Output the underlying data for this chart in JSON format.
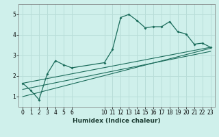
{
  "bg_color": "#cff0eb",
  "line_color": "#1a6b5a",
  "grid_color": "#b8ddd8",
  "xlabel": "Humidex (Indice chaleur)",
  "xlim": [
    -0.5,
    23.5
  ],
  "ylim": [
    0.5,
    5.5
  ],
  "yticks": [
    1,
    2,
    3,
    4,
    5
  ],
  "xticks": [
    0,
    1,
    2,
    3,
    4,
    5,
    6,
    10,
    11,
    12,
    13,
    14,
    15,
    16,
    17,
    18,
    19,
    20,
    21,
    22,
    23
  ],
  "main_x": [
    0,
    1,
    2,
    3,
    4,
    5,
    6,
    10,
    11,
    12,
    13,
    14,
    15,
    16,
    17,
    18,
    19,
    20,
    21,
    22,
    23
  ],
  "main_y": [
    1.65,
    1.3,
    0.85,
    2.1,
    2.75,
    2.55,
    2.4,
    2.65,
    3.3,
    4.85,
    5.0,
    4.7,
    4.35,
    4.4,
    4.4,
    4.65,
    4.15,
    4.05,
    3.55,
    3.6,
    3.4
  ],
  "line2_x": [
    0,
    23
  ],
  "line2_y": [
    1.65,
    3.4
  ],
  "line3_x": [
    0,
    23
  ],
  "line3_y": [
    1.0,
    3.35
  ],
  "line4_x": [
    0,
    23
  ],
  "line4_y": [
    1.35,
    3.2
  ]
}
